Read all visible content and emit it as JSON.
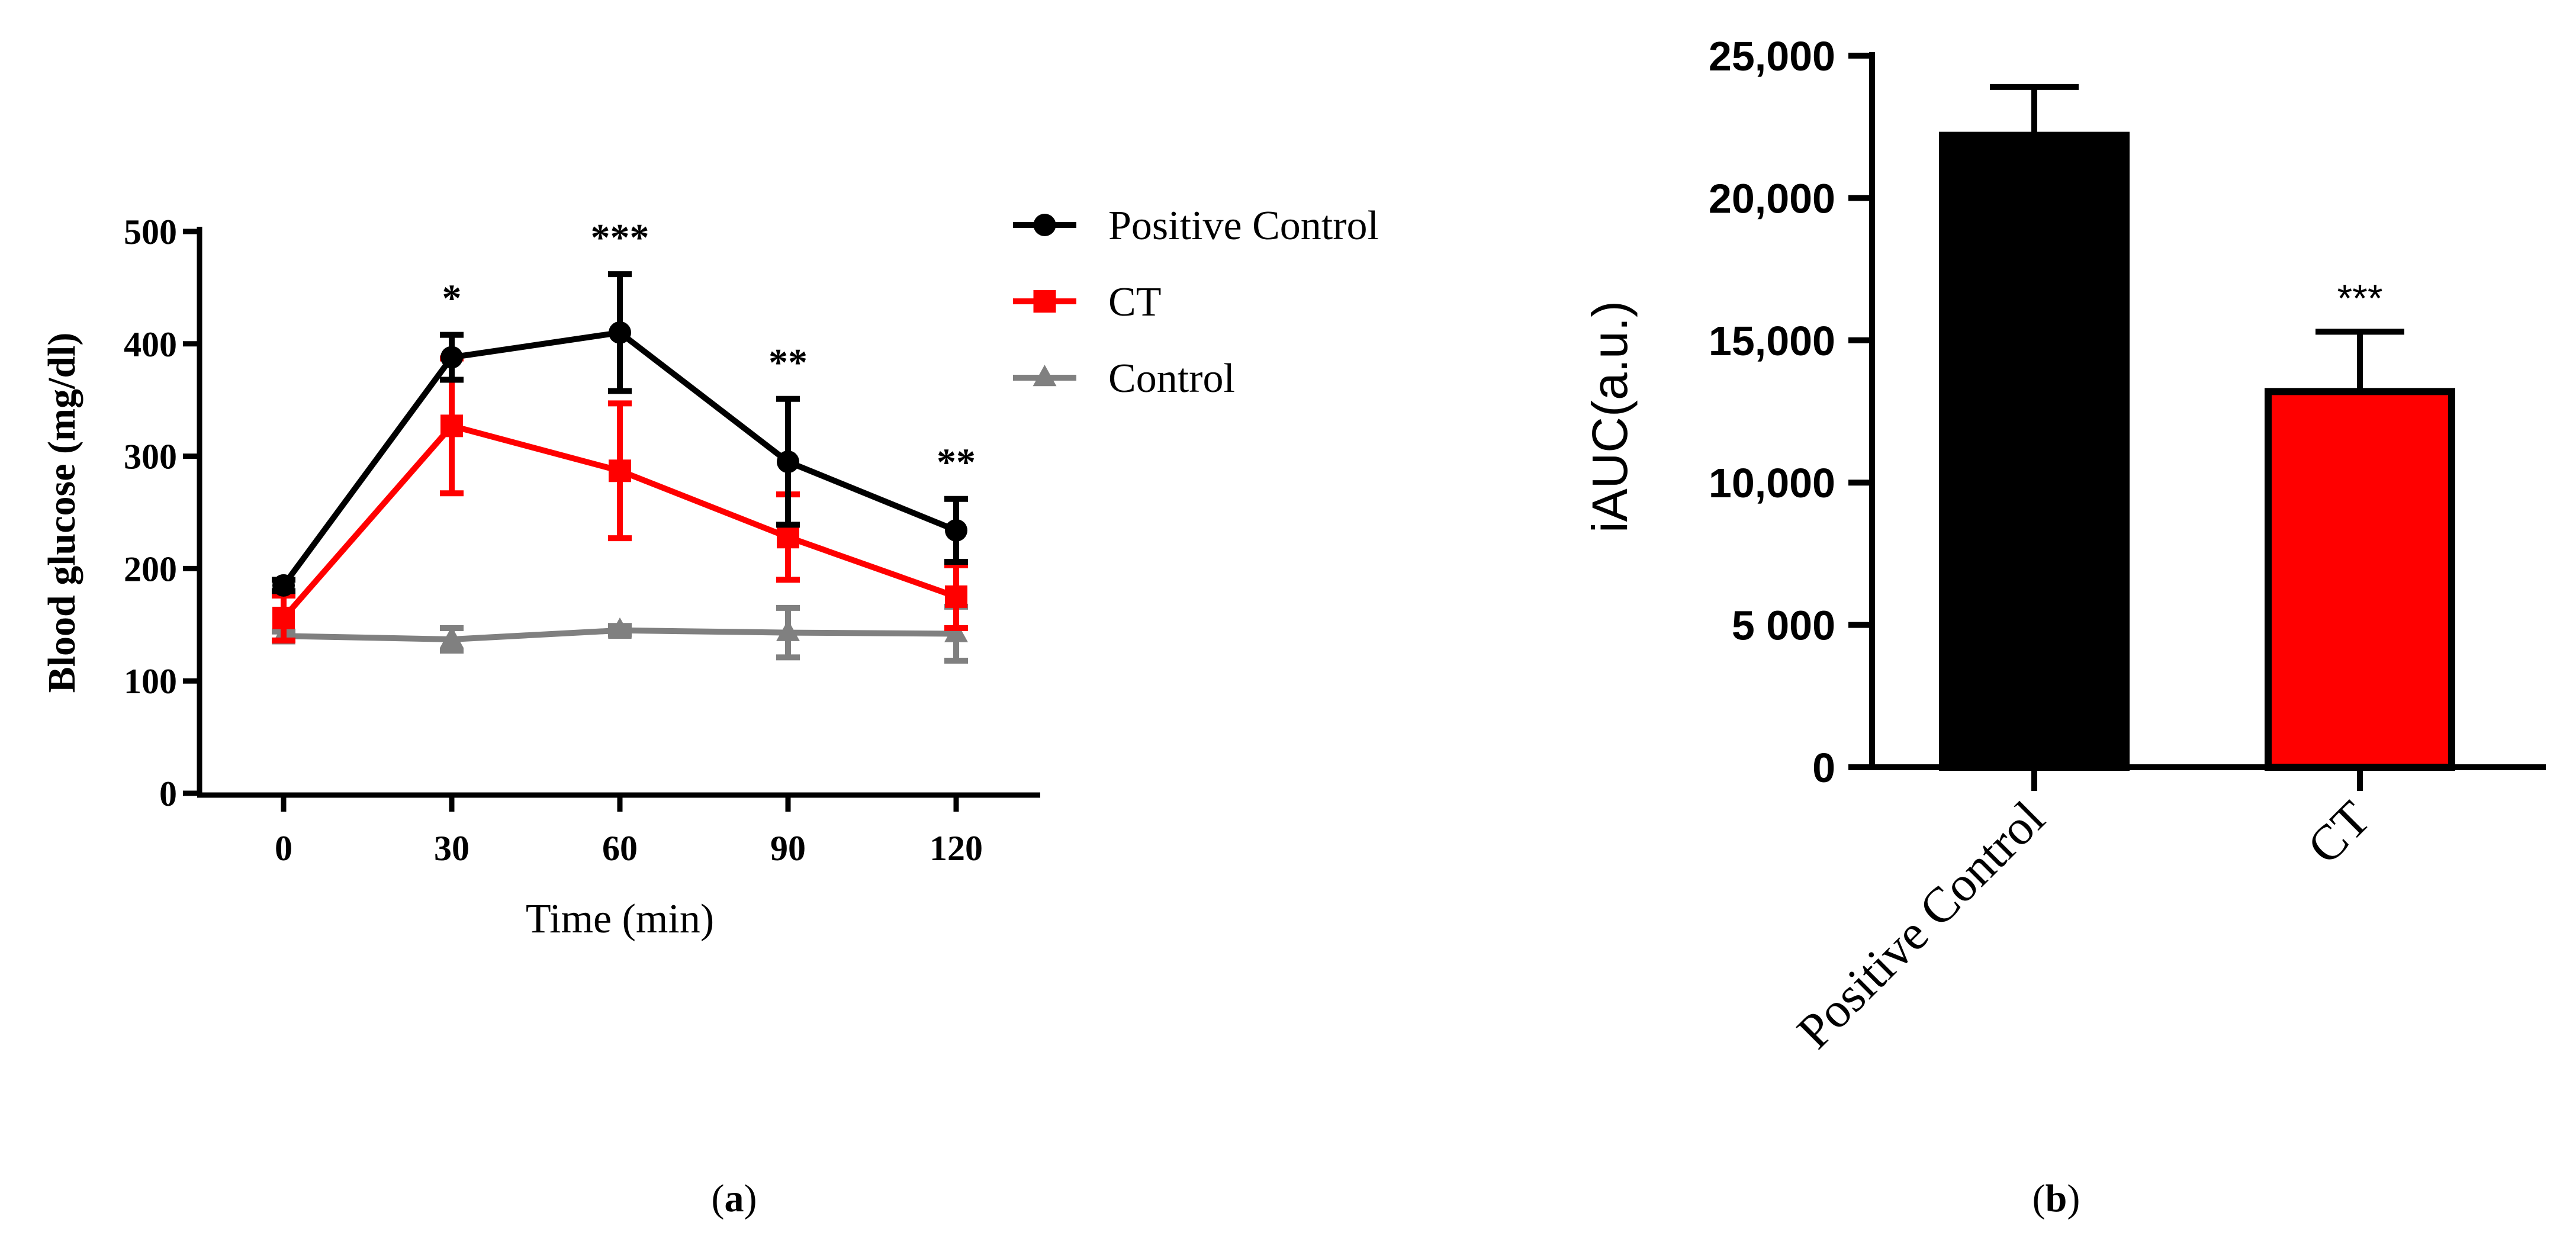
{
  "chart_data": [
    {
      "panel": "a",
      "panel_label": "a",
      "type": "line",
      "title": "",
      "xlabel": "Time (min)",
      "ylabel": "Blood glucose (mg/dl)",
      "x": [
        0,
        30,
        60,
        90,
        120
      ],
      "x_ticks": [
        "0",
        "30",
        "60",
        "90",
        "120"
      ],
      "xlim": [
        -15,
        135
      ],
      "ylim": [
        0,
        500
      ],
      "y_ticks": [
        "0",
        "100",
        "200",
        "300",
        "400",
        "500"
      ],
      "grid": false,
      "legend_position": "top-right",
      "series": [
        {
          "name": "Positive Control",
          "color": "#000000",
          "marker": "circle",
          "values": [
            185,
            388,
            410,
            295,
            234
          ],
          "errors": [
            5,
            20,
            52,
            56,
            28
          ]
        },
        {
          "name": "CT",
          "color": "#ff0000",
          "marker": "square",
          "values": [
            156,
            327,
            287,
            228,
            175
          ],
          "errors": [
            20,
            60,
            60,
            38,
            28
          ]
        },
        {
          "name": "Control",
          "color": "#808080",
          "marker": "triangle",
          "values": [
            140,
            137,
            145,
            143,
            142
          ],
          "errors": [
            4,
            10,
            4,
            22,
            24
          ]
        }
      ],
      "annotations": [
        {
          "x": 30,
          "text": "*"
        },
        {
          "x": 60,
          "text": "***"
        },
        {
          "x": 90,
          "text": "**"
        },
        {
          "x": 120,
          "text": "**"
        }
      ]
    },
    {
      "panel": "b",
      "panel_label": "b",
      "type": "bar",
      "title": "",
      "xlabel": "",
      "ylabel": "iAUC(a.u.)",
      "categories": [
        "Positive Control",
        "CT"
      ],
      "values": [
        22200,
        13200
      ],
      "errors": [
        1700,
        2100
      ],
      "colors": [
        "#000000",
        "#ff0000"
      ],
      "ylim": [
        0,
        25000
      ],
      "y_ticks": [
        "0",
        "5 000",
        "10,000",
        "15,000",
        "20,000",
        "25,000"
      ],
      "grid": false,
      "annotations": [
        {
          "category": "CT",
          "text": "***"
        }
      ]
    }
  ]
}
